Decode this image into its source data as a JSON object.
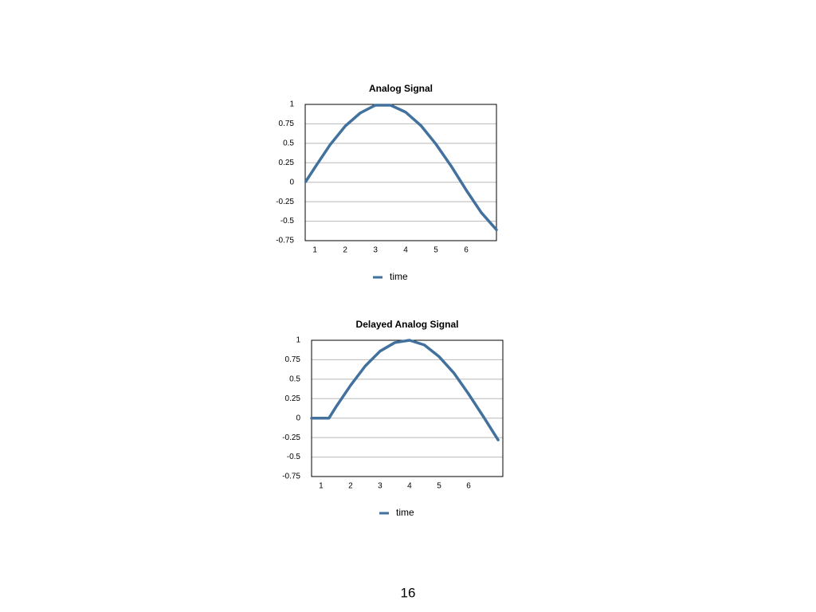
{
  "chart_data": [
    {
      "type": "line",
      "title": "Analog Signal",
      "x": [
        0.7,
        1,
        1.5,
        2,
        2.5,
        3,
        3.5,
        4,
        4.5,
        5,
        5.5,
        6,
        6.5,
        7
      ],
      "series": [
        {
          "name": "time",
          "color": "#41719c",
          "values": [
            0.01,
            0.19,
            0.48,
            0.72,
            0.89,
            0.99,
            0.99,
            0.9,
            0.73,
            0.49,
            0.21,
            -0.1,
            -0.39,
            -0.61
          ]
        }
      ],
      "xlim": [
        0.68,
        7
      ],
      "xticks": [
        1,
        2,
        3,
        4,
        5,
        6
      ],
      "ylim": [
        -0.75,
        1
      ],
      "yticks": [
        -0.75,
        -0.5,
        -0.25,
        0,
        0.25,
        0.5,
        0.75,
        1
      ],
      "grid": true,
      "legend": "bottom"
    },
    {
      "type": "line",
      "title": "Delayed Analog Signal",
      "x": [
        0.68,
        1,
        1.27,
        1.5,
        2,
        2.5,
        3,
        3.5,
        4,
        4.5,
        5,
        5.5,
        6,
        6.5,
        7
      ],
      "series": [
        {
          "name": "time",
          "color": "#41719c",
          "values": [
            0,
            0,
            0,
            0.14,
            0.42,
            0.67,
            0.86,
            0.97,
            1,
            0.94,
            0.79,
            0.58,
            0.31,
            0.02,
            -0.28
          ]
        }
      ],
      "xlim": [
        0.68,
        7.16
      ],
      "xticks": [
        1,
        2,
        3,
        4,
        5,
        6
      ],
      "ylim": [
        -0.75,
        1
      ],
      "yticks": [
        -0.75,
        -0.5,
        -0.25,
        0,
        0.25,
        0.5,
        0.75,
        1
      ],
      "grid": true,
      "legend": "bottom"
    }
  ],
  "page_number": "16"
}
